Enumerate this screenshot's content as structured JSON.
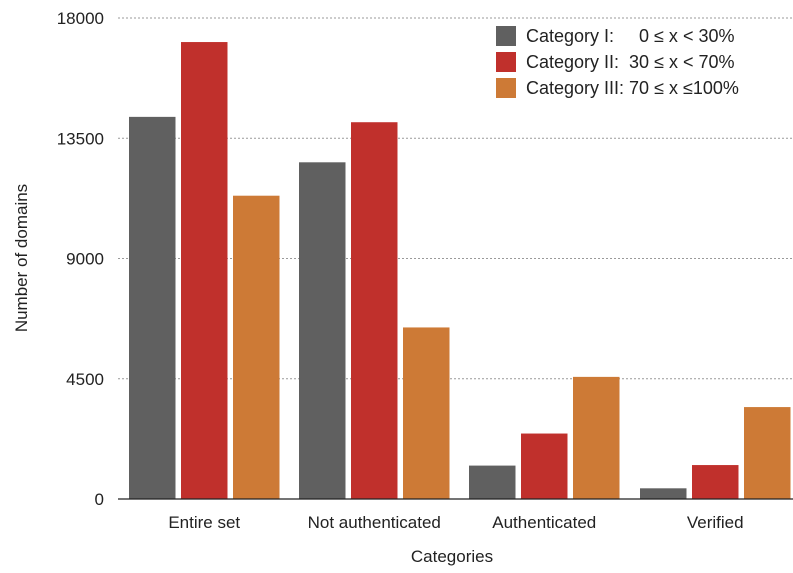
{
  "chart_data": {
    "type": "bar",
    "title": "",
    "xlabel": "Categories",
    "ylabel": "Number of domains",
    "ylim": [
      0,
      18000
    ],
    "yticks": [
      "0",
      "4500",
      "9000",
      "13500",
      "18000"
    ],
    "grid": "horizontal dotted",
    "legend_position": "top-right",
    "categories": [
      "Entire set",
      "Not authenticated",
      "Authenticated",
      "Verified"
    ],
    "series": [
      {
        "name": "Category I:     0 ≤ x < 30%",
        "color": "#606060",
        "values": [
          14300,
          12600,
          1250,
          400
        ]
      },
      {
        "name": "Category II:  30 ≤ x < 70%",
        "color": "#c0302c",
        "values": [
          17100,
          14100,
          2450,
          1270
        ]
      },
      {
        "name": "Category III: 70 ≤ x ≤100%",
        "color": "#cd7a36",
        "values": [
          11350,
          6420,
          4570,
          3440
        ]
      }
    ]
  }
}
